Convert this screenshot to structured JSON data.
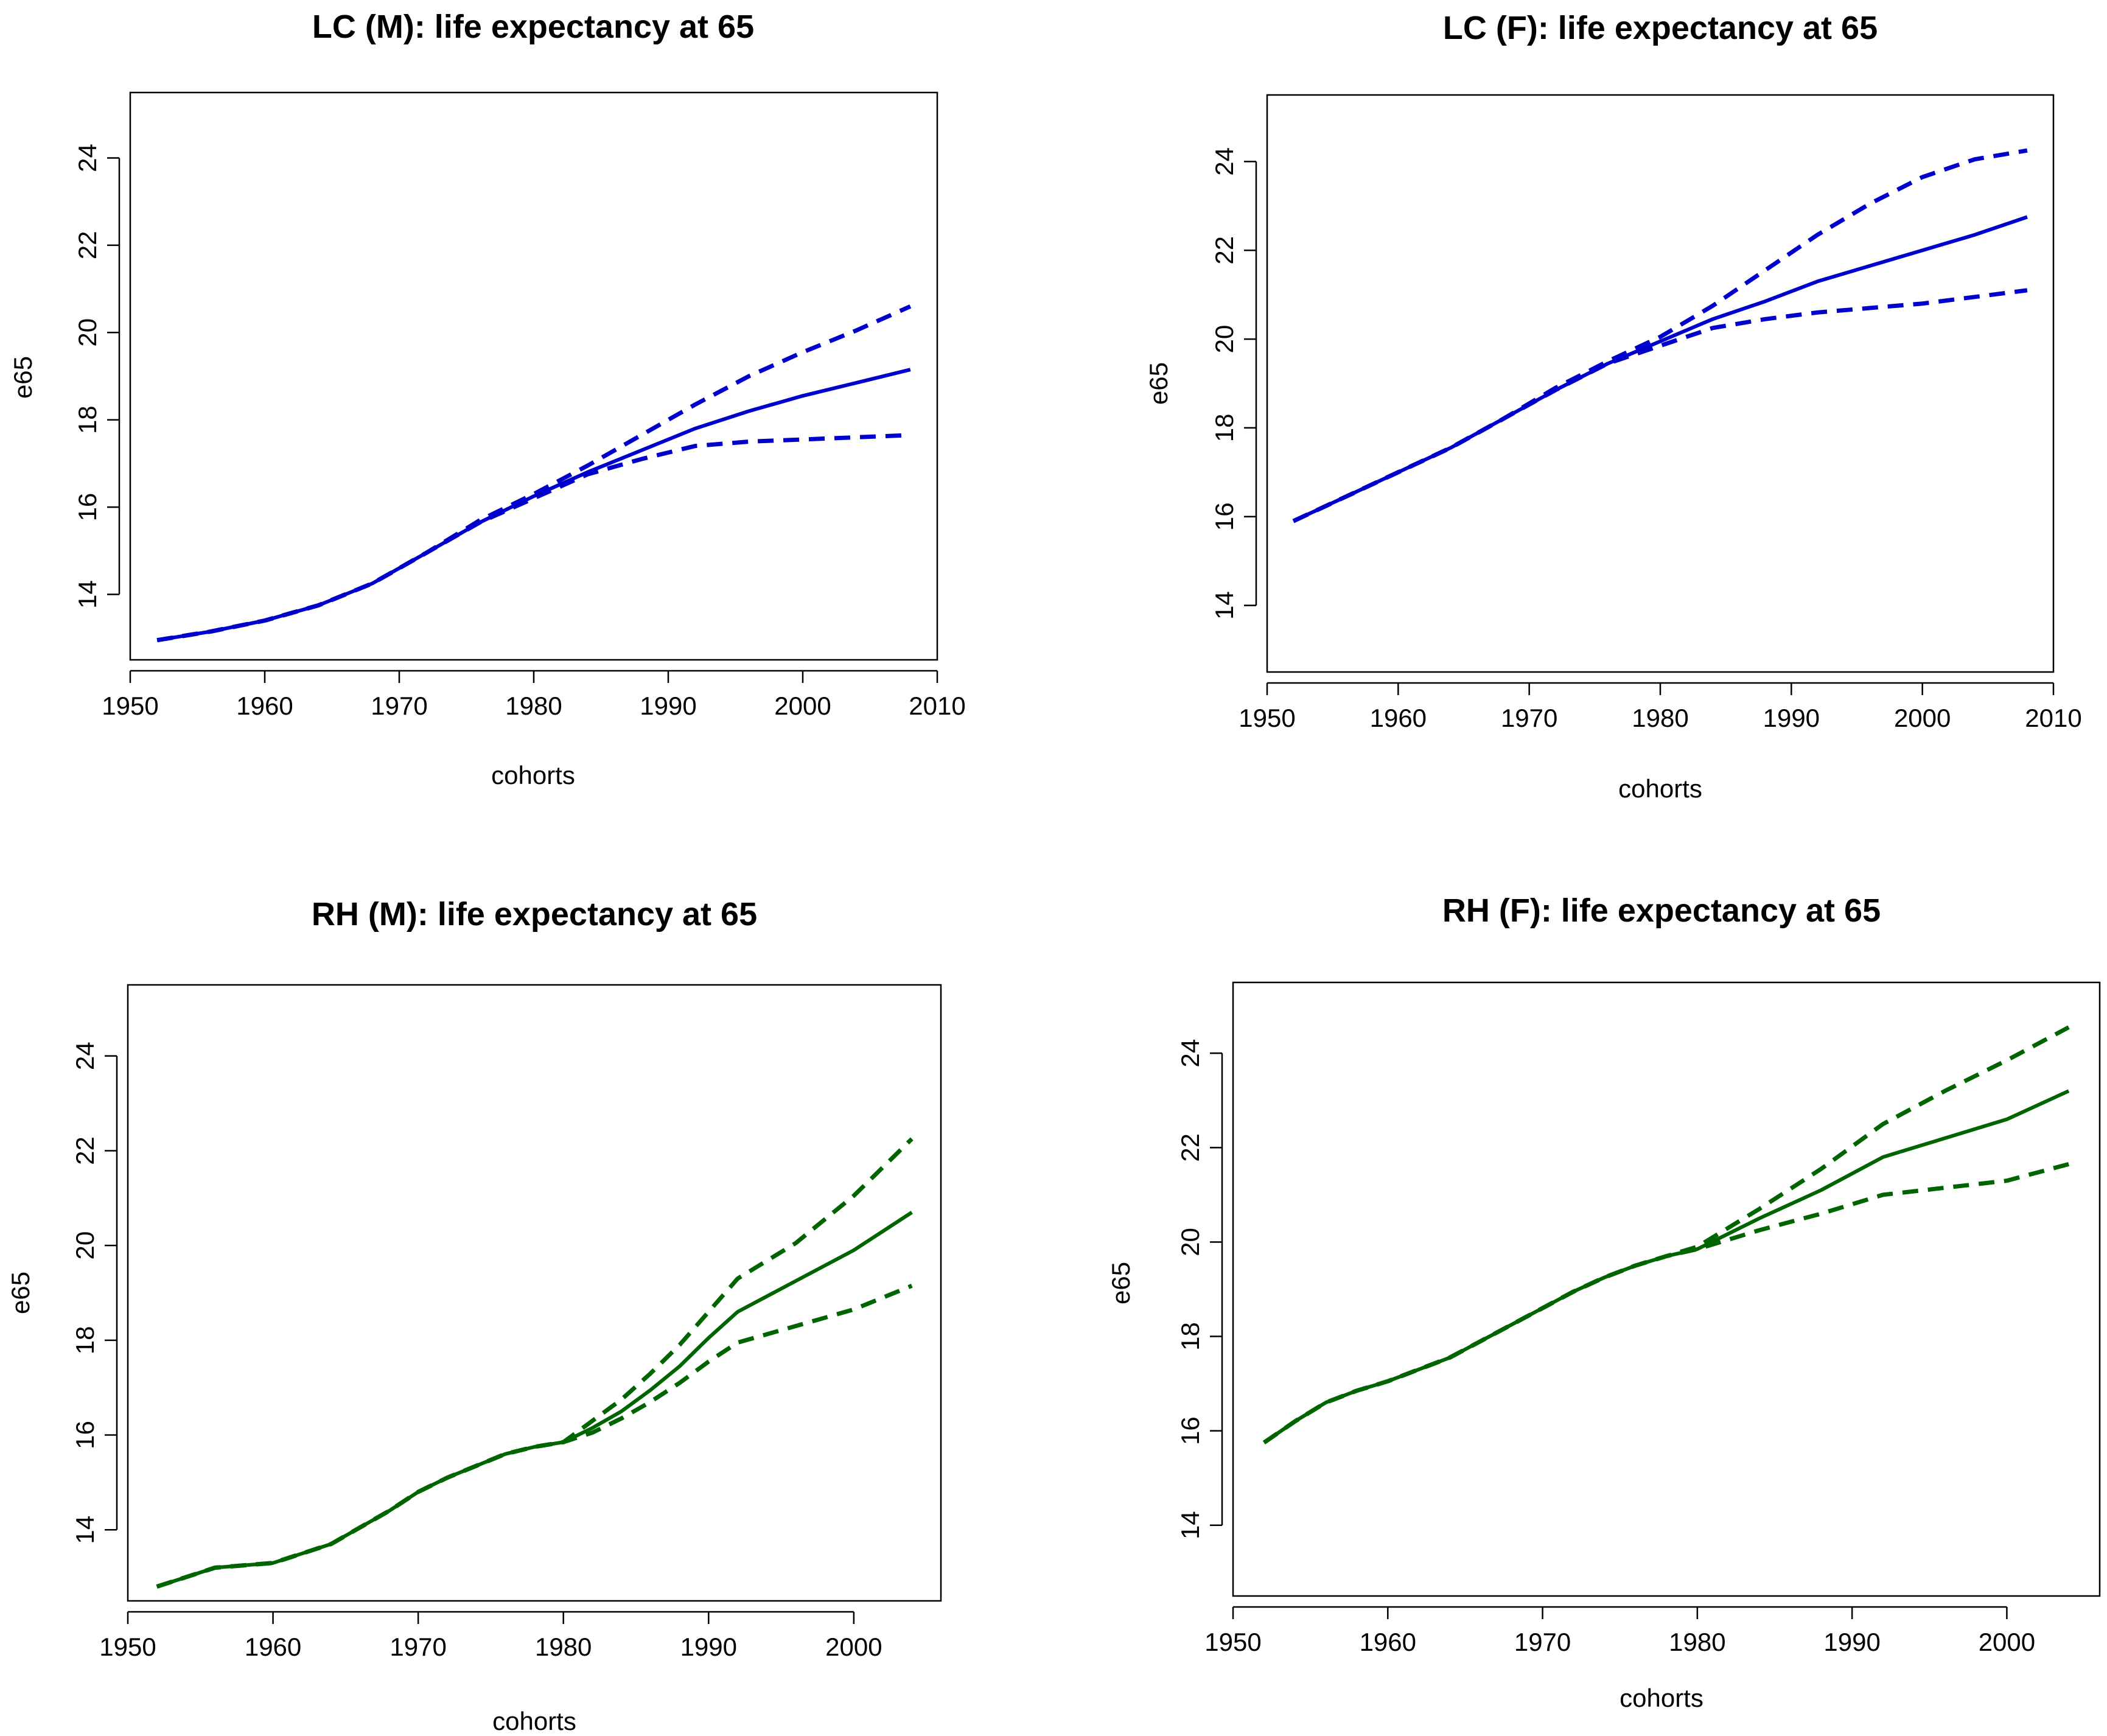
{
  "chart_data": [
    {
      "type": "line",
      "title": "LC (M): life expectancy at 65",
      "xlabel": "cohorts",
      "ylabel": "e65",
      "xlim": [
        1950,
        2010
      ],
      "ylim": [
        12.5,
        25.5
      ],
      "xticks": [
        1950,
        1960,
        1970,
        1980,
        1990,
        2000,
        2010
      ],
      "yticks": [
        14,
        16,
        18,
        20,
        22,
        24
      ],
      "color": "#0000cc",
      "grid": false,
      "x": [
        1952,
        1956,
        1960,
        1964,
        1968,
        1972,
        1976,
        1980,
        1984,
        1988,
        1992,
        1996,
        2000,
        2004,
        2008
      ],
      "series": [
        {
          "name": "upper",
          "style": "dashed",
          "values": [
            12.95,
            13.15,
            13.4,
            13.75,
            14.25,
            14.95,
            15.7,
            16.3,
            16.95,
            17.65,
            18.35,
            19.0,
            19.55,
            20.05,
            20.6
          ]
        },
        {
          "name": "central",
          "style": "solid",
          "values": [
            12.95,
            13.15,
            13.4,
            13.75,
            14.25,
            14.95,
            15.65,
            16.25,
            16.8,
            17.3,
            17.8,
            18.2,
            18.55,
            18.85,
            19.15
          ]
        },
        {
          "name": "lower",
          "style": "dashed",
          "values": [
            12.95,
            13.15,
            13.4,
            13.75,
            14.25,
            14.95,
            15.65,
            16.2,
            16.75,
            17.1,
            17.4,
            17.5,
            17.55,
            17.6,
            17.65
          ]
        }
      ]
    },
    {
      "type": "line",
      "title": "LC (F): life expectancy at 65",
      "xlabel": "cohorts",
      "ylabel": "e65",
      "xlim": [
        1950,
        2010
      ],
      "ylim": [
        12.5,
        25.5
      ],
      "xticks": [
        1950,
        1960,
        1970,
        1980,
        1990,
        2000,
        2010
      ],
      "yticks": [
        14,
        16,
        18,
        20,
        22,
        24
      ],
      "color": "#0000cc",
      "grid": false,
      "x": [
        1952,
        1956,
        1960,
        1964,
        1968,
        1972,
        1976,
        1980,
        1984,
        1988,
        1992,
        1996,
        2000,
        2004,
        2008
      ],
      "series": [
        {
          "name": "upper",
          "style": "dashed",
          "values": [
            15.9,
            16.45,
            17.0,
            17.55,
            18.2,
            18.9,
            19.5,
            20.05,
            20.75,
            21.55,
            22.35,
            23.05,
            23.65,
            24.05,
            24.25
          ]
        },
        {
          "name": "central",
          "style": "solid",
          "values": [
            15.9,
            16.45,
            17.0,
            17.55,
            18.2,
            18.85,
            19.45,
            19.95,
            20.45,
            20.85,
            21.3,
            21.65,
            22.0,
            22.35,
            22.75
          ]
        },
        {
          "name": "lower",
          "style": "dashed",
          "values": [
            15.9,
            16.45,
            17.0,
            17.55,
            18.2,
            18.85,
            19.45,
            19.85,
            20.25,
            20.45,
            20.6,
            20.7,
            20.8,
            20.95,
            21.1
          ]
        }
      ]
    },
    {
      "type": "line",
      "title": "RH (M): life expectancy at 65",
      "xlabel": "cohorts",
      "ylabel": "e65",
      "xlim": [
        1950,
        2006
      ],
      "ylim": [
        12.5,
        25.5
      ],
      "xticks": [
        1950,
        1960,
        1970,
        1980,
        1990,
        2000
      ],
      "yticks": [
        14,
        16,
        18,
        20,
        22,
        24
      ],
      "color": "#006400",
      "grid": false,
      "x": [
        1952,
        1954,
        1956,
        1958,
        1960,
        1962,
        1964,
        1966,
        1968,
        1970,
        1972,
        1974,
        1976,
        1978,
        1980,
        1982,
        1984,
        1986,
        1988,
        1990,
        1992,
        1996,
        2000,
        2004
      ],
      "series": [
        {
          "name": "upper",
          "style": "dashed",
          "values": [
            12.8,
            13.0,
            13.2,
            13.25,
            13.3,
            13.5,
            13.7,
            14.05,
            14.4,
            14.8,
            15.1,
            15.35,
            15.6,
            15.75,
            15.85,
            16.3,
            16.75,
            17.3,
            17.9,
            18.6,
            19.3,
            20.05,
            21.05,
            22.25
          ]
        },
        {
          "name": "central",
          "style": "solid",
          "values": [
            12.8,
            13.0,
            13.2,
            13.25,
            13.3,
            13.5,
            13.7,
            14.05,
            14.4,
            14.8,
            15.1,
            15.35,
            15.6,
            15.75,
            15.85,
            16.15,
            16.5,
            16.95,
            17.45,
            18.05,
            18.6,
            19.25,
            19.9,
            20.7
          ]
        },
        {
          "name": "lower",
          "style": "dashed",
          "values": [
            12.8,
            13.0,
            13.2,
            13.25,
            13.3,
            13.5,
            13.7,
            14.05,
            14.4,
            14.8,
            15.1,
            15.35,
            15.6,
            15.75,
            15.85,
            16.05,
            16.35,
            16.7,
            17.1,
            17.55,
            17.95,
            18.3,
            18.65,
            19.15
          ]
        }
      ]
    },
    {
      "type": "line",
      "title": "RH (F): life expectancy at 65",
      "xlabel": "cohorts",
      "ylabel": "e65",
      "xlim": [
        1950,
        2006
      ],
      "ylim": [
        12.5,
        25.5
      ],
      "xticks": [
        1950,
        1960,
        1970,
        1980,
        1990,
        2000
      ],
      "yticks": [
        14,
        16,
        18,
        20,
        22,
        24
      ],
      "color": "#006400",
      "grid": false,
      "x": [
        1952,
        1954,
        1956,
        1958,
        1960,
        1962,
        1964,
        1966,
        1968,
        1970,
        1972,
        1974,
        1976,
        1978,
        1980,
        1984,
        1988,
        1992,
        1996,
        2000,
        2004
      ],
      "series": [
        {
          "name": "upper",
          "style": "dashed",
          "values": [
            15.75,
            16.2,
            16.6,
            16.85,
            17.05,
            17.3,
            17.55,
            17.9,
            18.25,
            18.6,
            18.95,
            19.25,
            19.5,
            19.7,
            19.9,
            20.7,
            21.55,
            22.5,
            23.2,
            23.85,
            24.55
          ]
        },
        {
          "name": "central",
          "style": "solid",
          "values": [
            15.75,
            16.2,
            16.6,
            16.85,
            17.05,
            17.3,
            17.55,
            17.9,
            18.25,
            18.6,
            18.95,
            19.25,
            19.5,
            19.7,
            19.85,
            20.5,
            21.1,
            21.8,
            22.2,
            22.6,
            23.2
          ]
        },
        {
          "name": "lower",
          "style": "dashed",
          "values": [
            15.75,
            16.2,
            16.6,
            16.85,
            17.05,
            17.3,
            17.55,
            17.9,
            18.25,
            18.6,
            18.95,
            19.25,
            19.5,
            19.7,
            19.85,
            20.25,
            20.6,
            21.0,
            21.15,
            21.3,
            21.65
          ]
        }
      ]
    }
  ]
}
